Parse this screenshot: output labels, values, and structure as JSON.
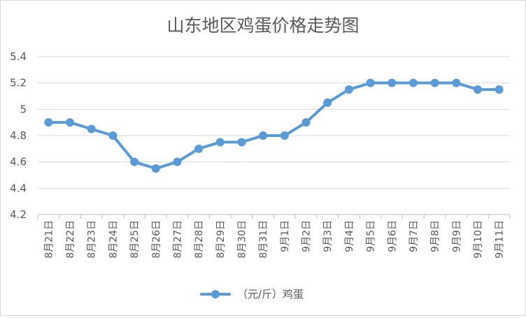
{
  "chart_data": {
    "type": "line",
    "title": "山东地区鸡蛋价格走势图",
    "xlabel": "",
    "ylabel": "",
    "categories": [
      "8月21日",
      "8月22日",
      "8月23日",
      "8月24日",
      "8月25日",
      "8月26日",
      "8月27日",
      "8月28日",
      "8月29日",
      "8月30日",
      "8月31日",
      "9月1日",
      "9月2日",
      "9月3日",
      "9月4日",
      "9月5日",
      "9月6日",
      "9月7日",
      "9月8日",
      "9月9日",
      "9月10日",
      "9月11日"
    ],
    "series": [
      {
        "name": "（元/斤）鸡蛋",
        "color": "#5b9bd5",
        "values": [
          4.9,
          4.9,
          4.85,
          4.8,
          4.6,
          4.55,
          4.6,
          4.7,
          4.75,
          4.75,
          4.8,
          4.8,
          4.9,
          5.05,
          5.15,
          5.2,
          5.2,
          5.2,
          5.2,
          5.2,
          5.15,
          5.15
        ]
      }
    ],
    "ylim": [
      4.2,
      5.4
    ],
    "yticks": [
      "4.2",
      "4.4",
      "4.6",
      "4.8",
      "5",
      "5.2",
      "5.4"
    ],
    "grid": true,
    "legend_position": "bottom"
  }
}
